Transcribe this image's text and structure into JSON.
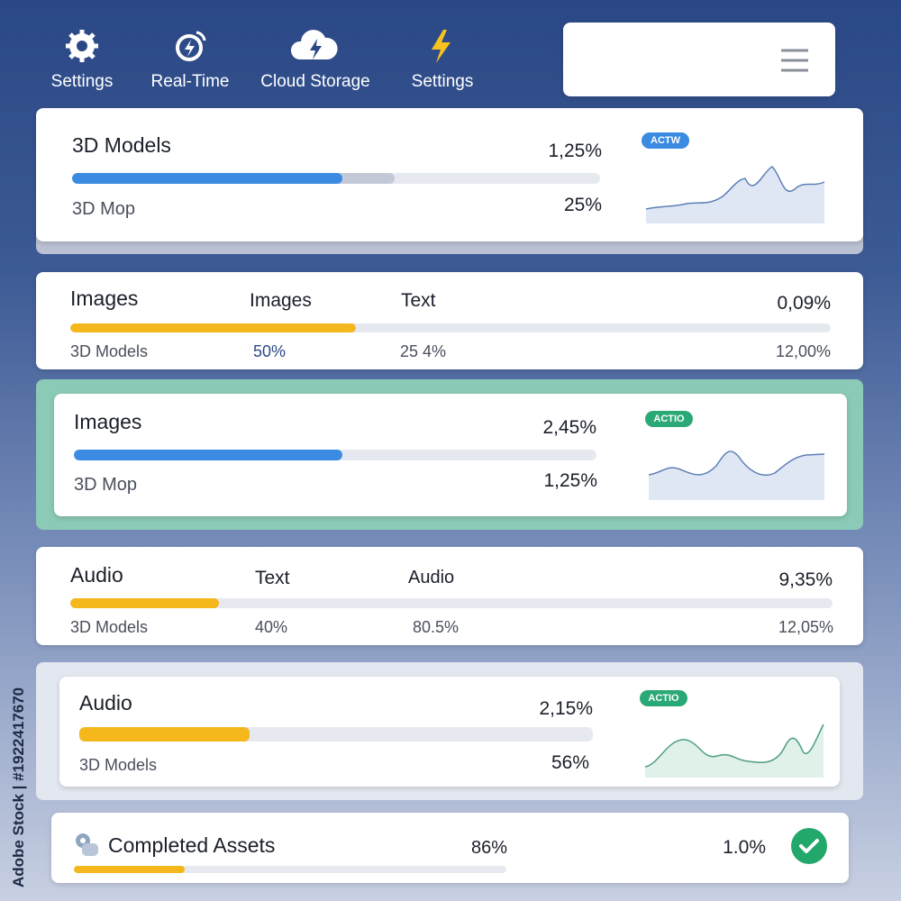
{
  "nav": {
    "items": [
      {
        "label": "Settings"
      },
      {
        "label": "Real-Time"
      },
      {
        "label": "Cloud Storage"
      },
      {
        "label": "Settings"
      }
    ]
  },
  "cards": [
    {
      "title": "3D Models",
      "value": "1,25%",
      "subtitle": "3D Mop",
      "subvalue": "25%",
      "badge": "ACTW"
    },
    {
      "title": "Images",
      "col2": "Images",
      "col3": "Text",
      "value": "0,09%",
      "row": [
        "3D Models",
        "50%",
        "25 4%",
        "12,00%"
      ]
    },
    {
      "title": "Images",
      "value": "2,45%",
      "subtitle": "3D Mop",
      "subvalue": "1,25%",
      "badge": "ACTIO"
    },
    {
      "title": "Audio",
      "col2": "Text",
      "col3": "Audio",
      "value": "9,35%",
      "row": [
        "3D Models",
        "40%",
        "80.5%",
        "12,05%"
      ]
    },
    {
      "title": "Audio",
      "value": "2,15%",
      "subtitle": "3D Models",
      "subvalue": "56%",
      "badge": "ACTIO"
    }
  ],
  "footer": {
    "title": "Completed Assets",
    "value": "86%",
    "rate": "1.0%"
  },
  "watermark": "Adobe Stock | #1922417670"
}
